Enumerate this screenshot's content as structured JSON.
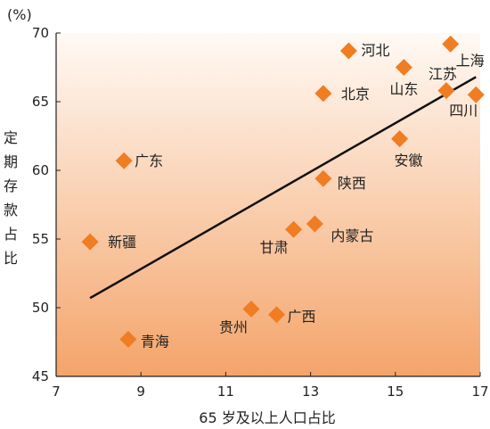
{
  "chart_data": {
    "type": "scatter",
    "title": "",
    "xlabel": "65 岁及以上人口占比",
    "ylabel": "定期存款占比",
    "y_unit": "(%)",
    "xlim": [
      7,
      17
    ],
    "ylim": [
      45,
      70
    ],
    "x_ticks": [
      "7",
      "9",
      "11",
      "13",
      "15",
      "17"
    ],
    "y_ticks": [
      "45",
      "50",
      "55",
      "60",
      "65",
      "70"
    ],
    "grid": false,
    "marker_color": "#f07d22",
    "background_gradient": [
      "#fffaf5",
      "#f4a46a"
    ],
    "points": [
      {
        "label": "河北",
        "x": 13.9,
        "y": 68.7
      },
      {
        "label": "上海",
        "x": 16.3,
        "y": 69.2
      },
      {
        "label": "山东",
        "x": 15.2,
        "y": 67.5
      },
      {
        "label": "江苏",
        "x": 16.2,
        "y": 65.8
      },
      {
        "label": "北京",
        "x": 13.3,
        "y": 65.6
      },
      {
        "label": "四川",
        "x": 16.9,
        "y": 65.5
      },
      {
        "label": "安徽",
        "x": 15.1,
        "y": 62.3
      },
      {
        "label": "广东",
        "x": 8.6,
        "y": 60.7
      },
      {
        "label": "陕西",
        "x": 13.3,
        "y": 59.4
      },
      {
        "label": "内蒙古",
        "x": 13.1,
        "y": 56.1
      },
      {
        "label": "甘肃",
        "x": 12.6,
        "y": 55.7
      },
      {
        "label": "新疆",
        "x": 7.8,
        "y": 54.8
      },
      {
        "label": "贵州",
        "x": 11.6,
        "y": 49.9
      },
      {
        "label": "广西",
        "x": 12.2,
        "y": 49.5
      },
      {
        "label": "青海",
        "x": 8.7,
        "y": 47.7
      }
    ],
    "trendline": {
      "x": [
        7.8,
        16.9
      ],
      "y": [
        50.7,
        66.8
      ]
    }
  }
}
